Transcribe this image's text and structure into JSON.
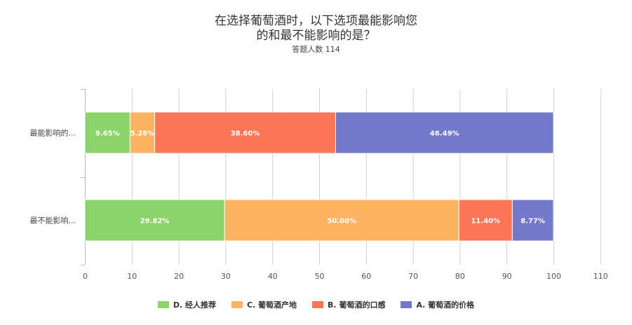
{
  "chart_data": {
    "type": "bar",
    "orientation": "horizontal",
    "stacked": true,
    "title_lines": [
      "在选择葡萄酒时，以下选项最能影响您",
      "的和最不能影响的是？"
    ],
    "subtitle": "答题人数 114",
    "categories": [
      "最能影响的...",
      "最不能影响..."
    ],
    "series": [
      {
        "name": "D. 经人推荐",
        "color": "#8dd36b",
        "values": [
          9.65,
          29.82
        ],
        "labels": [
          "9.65%",
          "29.82%"
        ]
      },
      {
        "name": "C. 葡萄酒产地",
        "color": "#fdb462",
        "values": [
          5.26,
          50.0
        ],
        "labels": [
          "5.26%",
          "50.00%"
        ]
      },
      {
        "name": "B. 葡萄酒的口感",
        "color": "#fb7659",
        "values": [
          38.6,
          11.4
        ],
        "labels": [
          "38.60%",
          "11.40%"
        ]
      },
      {
        "name": "A. 葡萄酒的价格",
        "color": "#7478c9",
        "values": [
          46.49,
          8.77
        ],
        "labels": [
          "46.49%",
          "8.77%"
        ]
      }
    ],
    "xlim": [
      0,
      110
    ],
    "xticks": [
      "0",
      "10",
      "20",
      "30",
      "40",
      "50",
      "60",
      "70",
      "80",
      "90",
      "100",
      "110"
    ],
    "grid": true,
    "legend_position": "bottom"
  }
}
